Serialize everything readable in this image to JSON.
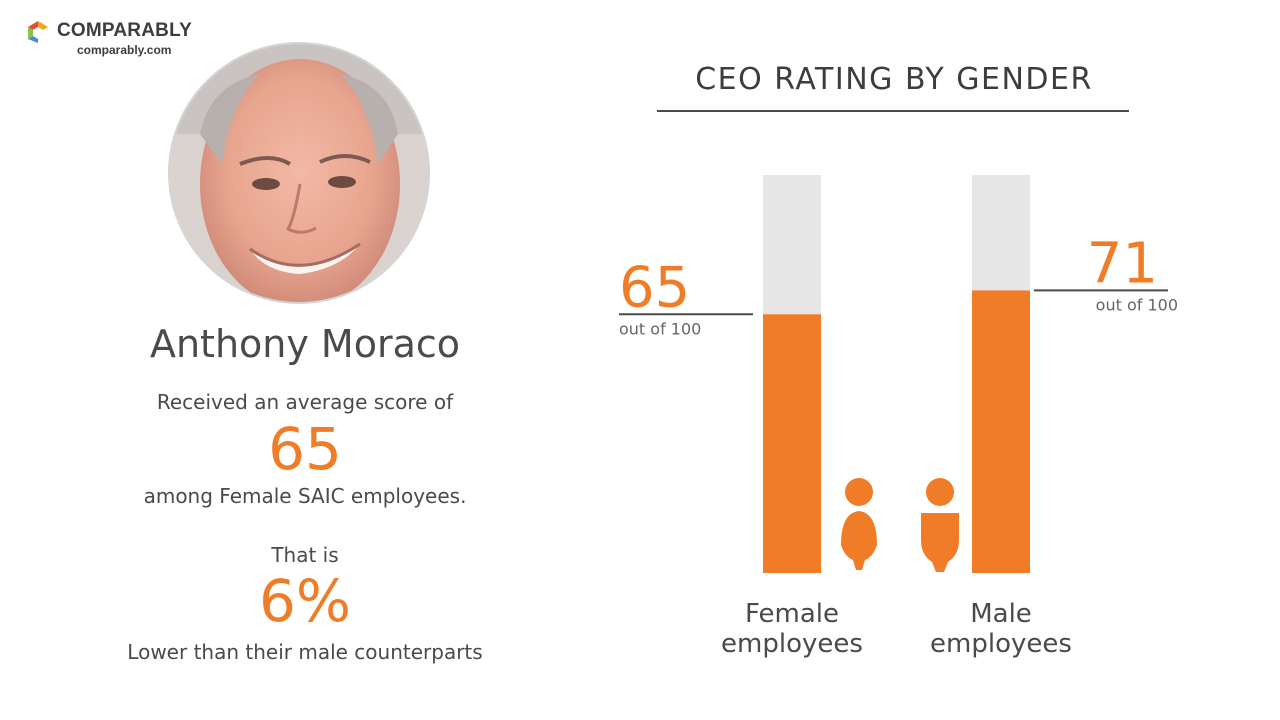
{
  "brand": {
    "name": "COMPARABLY",
    "url": "comparably.com",
    "colors": [
      "#f2a623",
      "#e04e39",
      "#8ac54b",
      "#3f8fd2"
    ]
  },
  "profile": {
    "photo_icon": "ceo-photo",
    "name": "Anthony Moraco",
    "line1": "Received an average score of",
    "score": "65",
    "line2": "among Female SAIC employees.",
    "line3": "That is",
    "diff": "6%",
    "line4": "Lower than their male counterparts"
  },
  "accent_color": "#f07c28",
  "track_color": "#e6e6e6",
  "chart_data": {
    "type": "bar",
    "title": "CEO RATING BY GENDER",
    "categories": [
      "Female employees",
      "Male employees"
    ],
    "category_lines": [
      [
        "Female",
        "employees"
      ],
      [
        "Male",
        "employees"
      ]
    ],
    "values": [
      65,
      71
    ],
    "value_labels": [
      "65",
      "71"
    ],
    "unit_label": "out of 100",
    "ylim": [
      0,
      100
    ],
    "icons": [
      "female-person-icon",
      "male-person-icon"
    ]
  }
}
